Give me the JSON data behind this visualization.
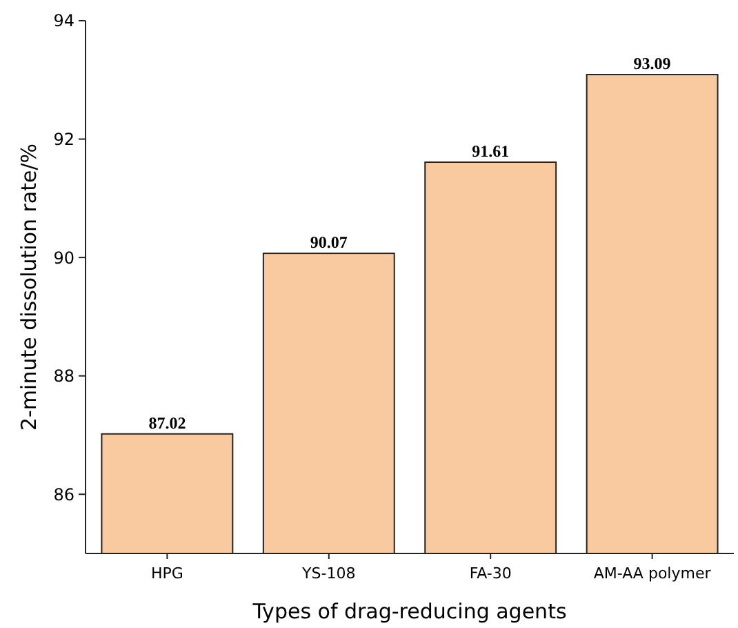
{
  "chart_data": {
    "type": "bar",
    "xlabel": "Types of drag-reducing agents",
    "ylabel": "2-minute dissolution rate/%",
    "categories": [
      "HPG",
      "YS-108",
      "FA-30",
      "AM-AA polymer"
    ],
    "values": [
      87.02,
      90.07,
      91.61,
      93.09
    ],
    "color": "#f9c9a0",
    "ylim": [
      85,
      94
    ],
    "yticks": [
      86,
      88,
      90,
      92,
      94
    ],
    "data_labels": true
  }
}
